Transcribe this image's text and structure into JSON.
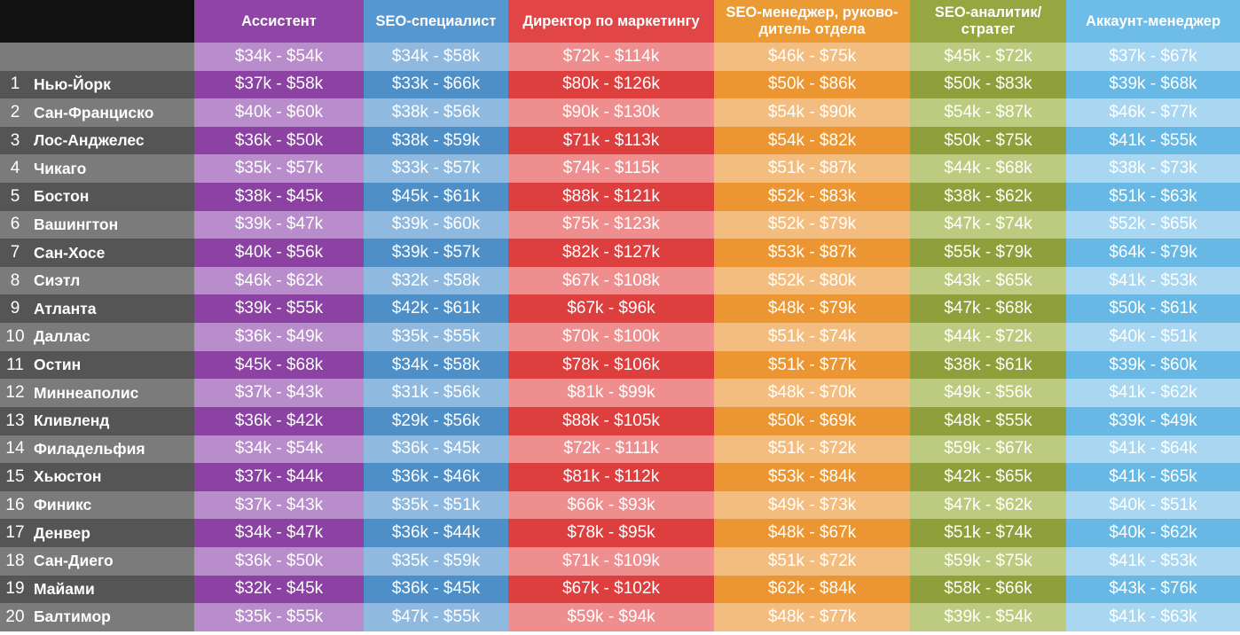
{
  "colors": {
    "header": [
      "#8f44a6",
      "#5597d0",
      "#e24545",
      "#ec9a33",
      "#96a741",
      "#6dbde8"
    ],
    "dark": [
      "#8b42a3",
      "#4f8fc7",
      "#dd3f3f",
      "#eb9632",
      "#8e9f3b",
      "#67b8e5"
    ],
    "light": [
      "#b98ccc",
      "#8fb9de",
      "#ee8e8e",
      "#f4bd80",
      "#bccb7f",
      "#a9d6f1"
    ],
    "city_dark": "#555555",
    "city_light": "#7b7b7b",
    "corner": "#111111"
  },
  "chart_data": {
    "type": "table",
    "columns": [
      "Ассистент",
      "SEO-специалист",
      "Директор по маркетингу",
      "SEO-менеджер, руково-дитель отдела",
      "SEO-аналитик/ стратег",
      "Аккаунт-менеджер"
    ],
    "average_row": [
      "$34k - $54k",
      "$34k - $58k",
      "$72k - $114k",
      "$46k - $75k",
      "$45k - $72k",
      "$37k - $67k"
    ],
    "rows": [
      {
        "rank": "1",
        "city": "Нью-Йорк",
        "values": [
          "$37k - $58k",
          "$33k - $66k",
          "$80k - $126k",
          "$50k - $86k",
          "$50k - $83k",
          "$39k - $68k"
        ]
      },
      {
        "rank": "2",
        "city": "Сан-Франциско",
        "values": [
          "$40k - $60k",
          "$38k - $56k",
          "$90k - $130k",
          "$54k - $90k",
          "$54k - $87k",
          "$46k - $77k"
        ]
      },
      {
        "rank": "3",
        "city": "Лос-Анджелес",
        "values": [
          "$36k - $50k",
          "$38k - $59k",
          "$71k - $113k",
          "$54k - $82k",
          "$50k - $75k",
          "$41k - $55k"
        ]
      },
      {
        "rank": "4",
        "city": "Чикаго",
        "values": [
          "$35k - $57k",
          "$33k - $57k",
          "$74k - $115k",
          "$51k - $87k",
          "$44k - $68k",
          "$38k - $73k"
        ]
      },
      {
        "rank": "5",
        "city": "Бостон",
        "values": [
          "$38k - $45k",
          "$45k - $61k",
          "$88k - $121k",
          "$52k - $83k",
          "$38k - $62k",
          "$51k - $63k"
        ]
      },
      {
        "rank": "6",
        "city": "Вашингтон",
        "values": [
          "$39k - $47k",
          "$39k - $60k",
          "$75k - $123k",
          "$52k - $79k",
          "$47k - $74k",
          "$52k - $65k"
        ]
      },
      {
        "rank": "7",
        "city": "Сан-Хосе",
        "values": [
          "$40k - $56k",
          "$39k - $57k",
          "$82k - $127k",
          "$53k - $87k",
          "$55k - $79k",
          "$64k - $79k"
        ]
      },
      {
        "rank": "8",
        "city": "Сиэтл",
        "values": [
          "$46k - $62k",
          "$32k - $58k",
          "$67k - $108k",
          "$52k - $80k",
          "$43k - $65k",
          "$41k - $53k"
        ]
      },
      {
        "rank": "9",
        "city": "Атланта",
        "values": [
          "$39k - $55k",
          "$42k - $61k",
          "$67k - $96k",
          "$48k - $79k",
          "$47k - $68k",
          "$50k - $61k"
        ]
      },
      {
        "rank": "10",
        "city": "Даллас",
        "values": [
          "$36k - $49k",
          "$35k - $55k",
          "$70k - $100k",
          "$51k - $74k",
          "$44k - $72k",
          "$40k - $51k"
        ]
      },
      {
        "rank": "11",
        "city": "Остин",
        "values": [
          "$45k - $68k",
          "$34k - $58k",
          "$78k - $106k",
          "$51k - $77k",
          "$38k - $61k",
          "$39k - $60k"
        ]
      },
      {
        "rank": "12",
        "city": "Миннеаполис",
        "values": [
          "$37k - $43k",
          "$31k - $56k",
          "$81k - $99k",
          "$48k - $70k",
          "$49k - $56k",
          "$41k - $62k"
        ]
      },
      {
        "rank": "13",
        "city": "Кливленд",
        "values": [
          "$36k - $42k",
          "$29k - $56k",
          "$88k - $105k",
          "$50k - $69k",
          "$48k - $55k",
          "$39k - $49k"
        ]
      },
      {
        "rank": "14",
        "city": "Филадельфия",
        "values": [
          "$34k - $54k",
          "$36k - $45k",
          "$72k - $111k",
          "$51k - $72k",
          "$59k - $67k",
          "$41k - $64k"
        ]
      },
      {
        "rank": "15",
        "city": "Хьюстон",
        "values": [
          "$37k - $44k",
          "$36k - $46k",
          "$81k - $112k",
          "$53k - $84k",
          "$42k - $65k",
          "$41k - $65k"
        ]
      },
      {
        "rank": "16",
        "city": "Финикс",
        "values": [
          "$37k - $43k",
          "$35k - $51k",
          "$66k - $93k",
          "$49k - $73k",
          "$47k - $62k",
          "$40k - $51k"
        ]
      },
      {
        "rank": "17",
        "city": "Денвер",
        "values": [
          "$34k - $47k",
          "$36k - $44k",
          "$78k - $95k",
          "$48k - $67k",
          "$51k - $74k",
          "$40k - $62k"
        ]
      },
      {
        "rank": "18",
        "city": "Сан-Диего",
        "values": [
          "$36k - $50k",
          "$35k - $59k",
          "$71k - $109k",
          "$51k - $72k",
          "$59k - $75k",
          "$41k - $53k"
        ]
      },
      {
        "rank": "19",
        "city": "Майами",
        "values": [
          "$32k - $45k",
          "$36k - $45k",
          "$67k - $102k",
          "$62k - $84k",
          "$58k - $66k",
          "$43k - $76k"
        ]
      },
      {
        "rank": "20",
        "city": "Балтимор",
        "values": [
          "$35k - $55k",
          "$47k - $55k",
          "$59k - $94k",
          "$48k - $77k",
          "$39k - $54k",
          "$41k - $63k"
        ]
      }
    ]
  }
}
